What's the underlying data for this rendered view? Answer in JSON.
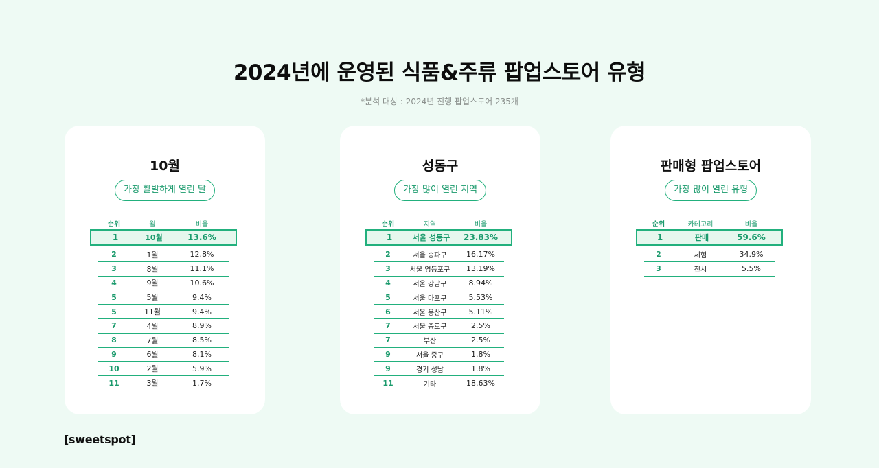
{
  "title": "2024년에 운영된 식품&주류 팝업스토어 유형",
  "subtitle": "*분석 대상 : 2024년 진행 팝업스토어 235개",
  "cards": [
    {
      "title": "10월",
      "pill": "가장 활발하게 열린 달",
      "headers": [
        "순위",
        "월",
        "비율"
      ],
      "rows": [
        [
          "1",
          "10월",
          "13.6%"
        ],
        [
          "2",
          "1월",
          "12.8%"
        ],
        [
          "3",
          "8월",
          "11.1%"
        ],
        [
          "4",
          "9월",
          "10.6%"
        ],
        [
          "5",
          "5월",
          "9.4%"
        ],
        [
          "5",
          "11월",
          "9.4%"
        ],
        [
          "7",
          "4월",
          "8.9%"
        ],
        [
          "8",
          "7월",
          "8.5%"
        ],
        [
          "9",
          "6월",
          "8.1%"
        ],
        [
          "10",
          "2월",
          "5.9%"
        ],
        [
          "11",
          "3월",
          "1.7%"
        ]
      ]
    },
    {
      "title": "성동구",
      "pill": "가장 많이 열린 지역",
      "headers": [
        "순위",
        "지역",
        "비율"
      ],
      "rows": [
        [
          "1",
          "서울 성동구",
          "23.83%"
        ],
        [
          "2",
          "서울 송파구",
          "16.17%"
        ],
        [
          "3",
          "서울 영등포구",
          "13.19%"
        ],
        [
          "4",
          "서울 강남구",
          "8.94%"
        ],
        [
          "5",
          "서울 마포구",
          "5.53%"
        ],
        [
          "6",
          "서울 용산구",
          "5.11%"
        ],
        [
          "7",
          "서울 종로구",
          "2.5%"
        ],
        [
          "7",
          "부산",
          "2.5%"
        ],
        [
          "9",
          "서울 중구",
          "1.8%"
        ],
        [
          "9",
          "경기 성남",
          "1.8%"
        ],
        [
          "11",
          "기타",
          "18.63%"
        ]
      ]
    },
    {
      "title": "판매형 팝업스토어",
      "pill": "가장 많이 열린 유형",
      "headers": [
        "순위",
        "카테고리",
        "비율"
      ],
      "rows": [
        [
          "1",
          "판매",
          "59.6%"
        ],
        [
          "2",
          "체험",
          "34.9%"
        ],
        [
          "3",
          "전시",
          "5.5%"
        ]
      ]
    }
  ],
  "logo": "[sweetspot]",
  "colors": {
    "accent": "#22b07d",
    "background": "#eefaf4",
    "highlight": "#e6f7ee"
  }
}
